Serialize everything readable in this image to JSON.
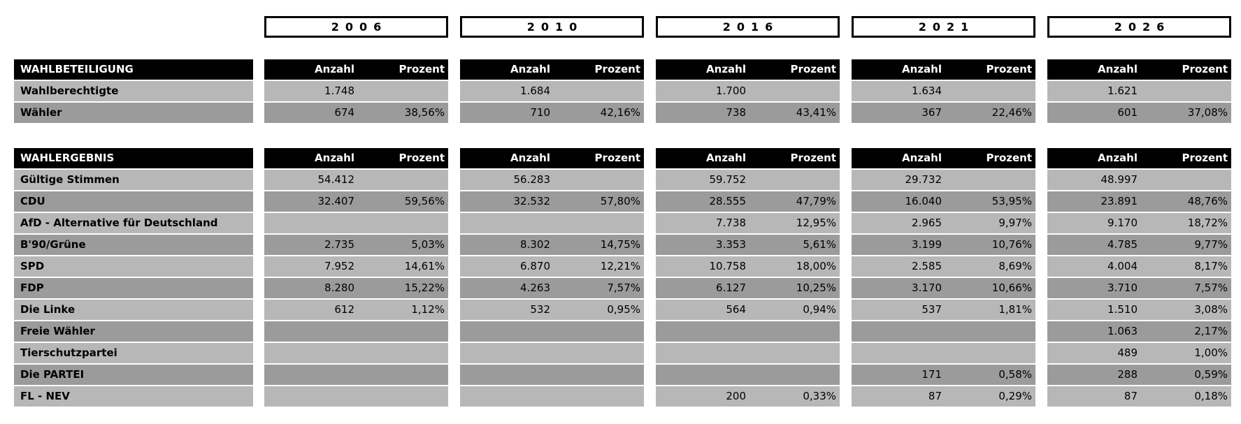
{
  "years": [
    "2006",
    "2010",
    "2016",
    "2021",
    "2026"
  ],
  "columns": {
    "anzahl": "Anzahl",
    "prozent": "Prozent"
  },
  "turnout": {
    "title": "WAHLBETEILIGUNG",
    "rows": [
      {
        "label": "Wahlberechtigte",
        "cells": [
          [
            "1.748",
            ""
          ],
          [
            "1.684",
            ""
          ],
          [
            "1.700",
            ""
          ],
          [
            "1.634",
            ""
          ],
          [
            "1.621",
            ""
          ]
        ]
      },
      {
        "label": "Wähler",
        "cells": [
          [
            "674",
            "38,56%"
          ],
          [
            "710",
            "42,16%"
          ],
          [
            "738",
            "43,41%"
          ],
          [
            "367",
            "22,46%"
          ],
          [
            "601",
            "37,08%"
          ]
        ]
      }
    ]
  },
  "results": {
    "title": "WAHLERGEBNIS",
    "rows": [
      {
        "label": "Gültige Stimmen",
        "cells": [
          [
            "54.412",
            ""
          ],
          [
            "56.283",
            ""
          ],
          [
            "59.752",
            ""
          ],
          [
            "29.732",
            ""
          ],
          [
            "48.997",
            ""
          ]
        ]
      },
      {
        "label": "CDU",
        "cells": [
          [
            "32.407",
            "59,56%"
          ],
          [
            "32.532",
            "57,80%"
          ],
          [
            "28.555",
            "47,79%"
          ],
          [
            "16.040",
            "53,95%"
          ],
          [
            "23.891",
            "48,76%"
          ]
        ]
      },
      {
        "label": "AfD - Alternative für Deutschland",
        "cells": [
          [
            "",
            ""
          ],
          [
            "",
            ""
          ],
          [
            "7.738",
            "12,95%"
          ],
          [
            "2.965",
            "9,97%"
          ],
          [
            "9.170",
            "18,72%"
          ]
        ]
      },
      {
        "label": "B'90/Grüne",
        "cells": [
          [
            "2.735",
            "5,03%"
          ],
          [
            "8.302",
            "14,75%"
          ],
          [
            "3.353",
            "5,61%"
          ],
          [
            "3.199",
            "10,76%"
          ],
          [
            "4.785",
            "9,77%"
          ]
        ]
      },
      {
        "label": "SPD",
        "cells": [
          [
            "7.952",
            "14,61%"
          ],
          [
            "6.870",
            "12,21%"
          ],
          [
            "10.758",
            "18,00%"
          ],
          [
            "2.585",
            "8,69%"
          ],
          [
            "4.004",
            "8,17%"
          ]
        ]
      },
      {
        "label": "FDP",
        "cells": [
          [
            "8.280",
            "15,22%"
          ],
          [
            "4.263",
            "7,57%"
          ],
          [
            "6.127",
            "10,25%"
          ],
          [
            "3.170",
            "10,66%"
          ],
          [
            "3.710",
            "7,57%"
          ]
        ]
      },
      {
        "label": "Die Linke",
        "cells": [
          [
            "612",
            "1,12%"
          ],
          [
            "532",
            "0,95%"
          ],
          [
            "564",
            "0,94%"
          ],
          [
            "537",
            "1,81%"
          ],
          [
            "1.510",
            "3,08%"
          ]
        ]
      },
      {
        "label": "Freie Wähler",
        "cells": [
          [
            "",
            ""
          ],
          [
            "",
            ""
          ],
          [
            "",
            ""
          ],
          [
            "",
            ""
          ],
          [
            "1.063",
            "2,17%"
          ]
        ]
      },
      {
        "label": "Tierschutzpartei",
        "cells": [
          [
            "",
            ""
          ],
          [
            "",
            ""
          ],
          [
            "",
            ""
          ],
          [
            "",
            ""
          ],
          [
            "489",
            "1,00%"
          ]
        ]
      },
      {
        "label": "Die PARTEI",
        "cells": [
          [
            "",
            ""
          ],
          [
            "",
            ""
          ],
          [
            "",
            ""
          ],
          [
            "171",
            "0,58%"
          ],
          [
            "288",
            "0,59%"
          ]
        ]
      },
      {
        "label": "FL - NEV",
        "cells": [
          [
            "",
            ""
          ],
          [
            "",
            ""
          ],
          [
            "200",
            "0,33%"
          ],
          [
            "87",
            "0,29%"
          ],
          [
            "87",
            "0,18%"
          ]
        ]
      }
    ]
  },
  "colors": {
    "background": "#ffffff",
    "row_light": "#b7b7b7",
    "row_dark": "#9b9b9b",
    "header_bg": "#000000",
    "header_text": "#ffffff",
    "text": "#000000",
    "year_box_border": "#000000"
  }
}
